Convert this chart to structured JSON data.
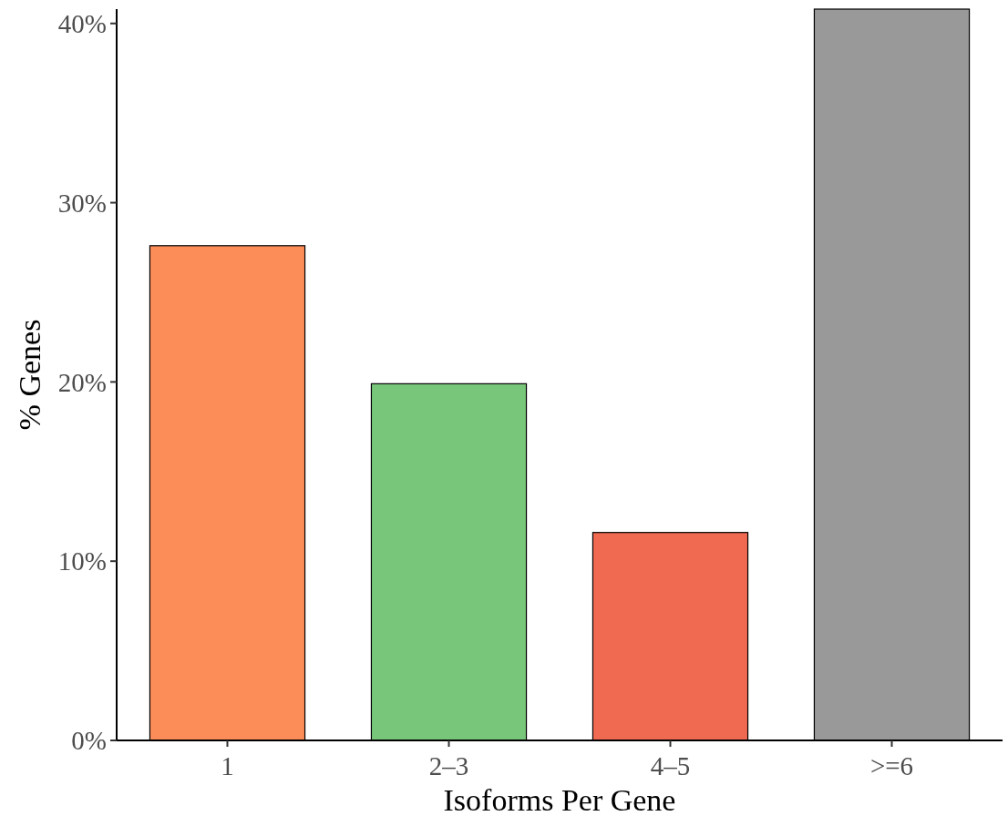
{
  "chart_data": {
    "type": "bar",
    "xlabel": "Isoforms Per Gene",
    "ylabel": "% Genes",
    "categories": [
      "1",
      "2–3",
      "4–5",
      ">=6"
    ],
    "values": [
      27.6,
      19.9,
      11.6,
      40.8
    ],
    "colors": [
      "#fc8d59",
      "#78c679",
      "#ef6a51",
      "#999999"
    ],
    "ylim": [
      0,
      40.8
    ],
    "yticks": [
      {
        "value": 0,
        "label": "0%"
      },
      {
        "value": 10,
        "label": "10%"
      },
      {
        "value": 20,
        "label": "20%"
      },
      {
        "value": 30,
        "label": "30%"
      },
      {
        "value": 40,
        "label": "40%"
      }
    ],
    "grid": false
  }
}
